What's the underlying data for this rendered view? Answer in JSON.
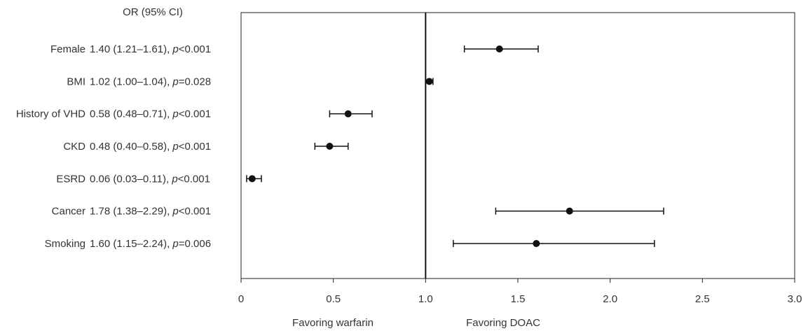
{
  "chart_data": {
    "type": "forest",
    "header": "OR (95% CI)",
    "rows": [
      {
        "variable": "Female",
        "or_text": "1.40 (1.21–1.61), ",
        "p_symbol": "p",
        "p_text": "<0.001",
        "or": 1.4,
        "lo": 1.21,
        "hi": 1.61
      },
      {
        "variable": "BMI",
        "or_text": "1.02 (1.00–1.04), ",
        "p_symbol": "p",
        "p_text": "=0.028",
        "or": 1.02,
        "lo": 1.0,
        "hi": 1.04
      },
      {
        "variable": "History of VHD",
        "or_text": "0.58 (0.48–0.71), ",
        "p_symbol": "p",
        "p_text": "<0.001",
        "or": 0.58,
        "lo": 0.48,
        "hi": 0.71
      },
      {
        "variable": "CKD",
        "or_text": "0.48 (0.40–0.58), ",
        "p_symbol": "p",
        "p_text": "<0.001",
        "or": 0.48,
        "lo": 0.4,
        "hi": 0.58
      },
      {
        "variable": "ESRD",
        "or_text": "0.06 (0.03–0.11), ",
        "p_symbol": "p",
        "p_text": "<0.001",
        "or": 0.06,
        "lo": 0.03,
        "hi": 0.11
      },
      {
        "variable": "Cancer",
        "or_text": "1.78 (1.38–2.29), ",
        "p_symbol": "p",
        "p_text": "<0.001",
        "or": 1.78,
        "lo": 1.38,
        "hi": 2.29
      },
      {
        "variable": "Smoking",
        "or_text": "1.60 (1.15–2.24), ",
        "p_symbol": "p",
        "p_text": "=0.006",
        "or": 1.6,
        "lo": 1.15,
        "hi": 2.24
      }
    ],
    "xlim": [
      0,
      3.0
    ],
    "x_ticks": [
      0,
      0.5,
      1.0,
      1.5,
      2.0,
      2.5,
      3.0
    ],
    "x_tick_labels": [
      "0",
      "0.5",
      "1.0",
      "1.5",
      "2.0",
      "2.5",
      "3.0"
    ],
    "reference_line": 1.0,
    "favoring_left": "Favoring warfarin",
    "favoring_right": "Favoring DOAC",
    "grid": false
  }
}
